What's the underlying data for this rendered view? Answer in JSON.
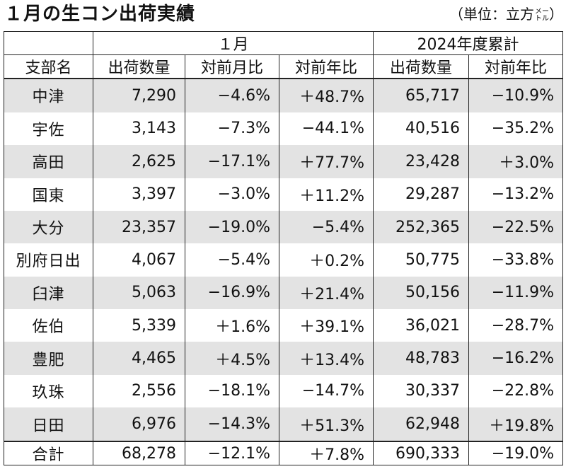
{
  "title": "１月の生コン出荷実績",
  "unit_main": "（単位：立方",
  "unit_sub_top": "メー",
  "unit_sub_bottom": "トル",
  "unit_close": "）",
  "header": {
    "group_month": "１月",
    "group_year": "2024年度累計",
    "col_branch": "支部名",
    "col_ship": "出荷数量",
    "col_mom": "対前月比",
    "col_yoy": "対前年比",
    "col_ship_cum": "出荷数量",
    "col_yoy_cum": "対前年比"
  },
  "rows": [
    {
      "name": "中津",
      "ship": "7,290",
      "mom": "−4.6%",
      "yoy": "＋48.7%",
      "cum": "65,717",
      "cum_yoy": "−10.9%"
    },
    {
      "name": "宇佐",
      "ship": "3,143",
      "mom": "−7.3%",
      "yoy": "−44.1%",
      "cum": "40,516",
      "cum_yoy": "−35.2%"
    },
    {
      "name": "高田",
      "ship": "2,625",
      "mom": "−17.1%",
      "yoy": "＋77.7%",
      "cum": "23,428",
      "cum_yoy": "＋3.0%"
    },
    {
      "name": "国東",
      "ship": "3,397",
      "mom": "−3.0%",
      "yoy": "＋11.2%",
      "cum": "29,287",
      "cum_yoy": "−13.2%"
    },
    {
      "name": "大分",
      "ship": "23,357",
      "mom": "−19.0%",
      "yoy": "−5.4%",
      "cum": "252,365",
      "cum_yoy": "−22.5%"
    },
    {
      "name": "別府日出",
      "ship": "4,067",
      "mom": "−5.4%",
      "yoy": "＋0.2%",
      "cum": "50,775",
      "cum_yoy": "−33.8%"
    },
    {
      "name": "臼津",
      "ship": "5,063",
      "mom": "−16.9%",
      "yoy": "＋21.4%",
      "cum": "50,156",
      "cum_yoy": "−11.9%"
    },
    {
      "name": "佐伯",
      "ship": "5,339",
      "mom": "＋1.6%",
      "yoy": "＋39.1%",
      "cum": "36,021",
      "cum_yoy": "−28.7%"
    },
    {
      "name": "豊肥",
      "ship": "4,465",
      "mom": "＋4.5%",
      "yoy": "＋13.4%",
      "cum": "48,783",
      "cum_yoy": "−16.2%"
    },
    {
      "name": "玖珠",
      "ship": "2,556",
      "mom": "−18.1%",
      "yoy": "−14.7%",
      "cum": "30,337",
      "cum_yoy": "−22.8%"
    },
    {
      "name": "日田",
      "ship": "6,976",
      "mom": "−14.3%",
      "yoy": "＋51.3%",
      "cum": "62,948",
      "cum_yoy": "＋19.8%"
    }
  ],
  "total": {
    "name": "合計",
    "ship": "68,278",
    "mom": "−12.1%",
    "yoy": "＋7.8%",
    "cum": "690,333",
    "cum_yoy": "−19.0%"
  },
  "colors": {
    "shade": "#e3e3e3",
    "border": "#222222"
  }
}
